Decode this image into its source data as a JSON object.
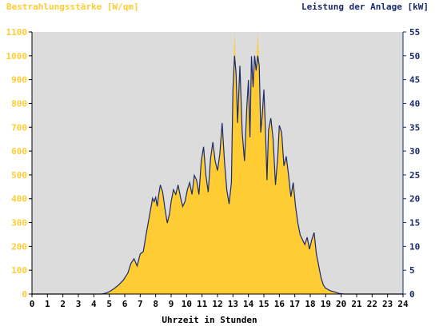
{
  "chart_data": {
    "type": "area",
    "title": "",
    "ylabel_left": "Bestrahlungsstärke [W/qm]",
    "ylabel_right": "Leistung der Anlage [kW]",
    "xlabel": "Uhrzeit in Stunden",
    "xlim": [
      0,
      24
    ],
    "ylim_left": [
      0,
      1100
    ],
    "ylim_right": [
      0,
      55
    ],
    "x_ticks": [
      "0",
      "1",
      "2",
      "3",
      "4",
      "5",
      "6",
      "7",
      "8",
      "9",
      "10",
      "11",
      "12",
      "13",
      "14",
      "15",
      "16",
      "17",
      "18",
      "19",
      "20",
      "21",
      "22",
      "23",
      "24"
    ],
    "y_ticks_left": [
      "0",
      "100",
      "200",
      "300",
      "400",
      "500",
      "600",
      "700",
      "800",
      "900",
      "1000",
      "1100"
    ],
    "y_ticks_right": [
      "0",
      "5",
      "10",
      "15",
      "20",
      "25",
      "30",
      "35",
      "40",
      "45",
      "50",
      "55"
    ],
    "grid": false,
    "series": [
      {
        "name": "Bestrahlungsstärke",
        "axis": "left",
        "style": "filled",
        "x": [
          0,
          4.5,
          4.8,
          5.0,
          5.3,
          5.6,
          5.9,
          6.2,
          6.4,
          6.6,
          6.8,
          7.0,
          7.2,
          7.4,
          7.6,
          7.8,
          7.9,
          8.0,
          8.1,
          8.2,
          8.3,
          8.45,
          8.6,
          8.75,
          8.9,
          9.0,
          9.15,
          9.3,
          9.45,
          9.6,
          9.75,
          9.9,
          10.05,
          10.2,
          10.35,
          10.5,
          10.65,
          10.8,
          10.95,
          11.1,
          11.25,
          11.4,
          11.55,
          11.7,
          11.85,
          12.0,
          12.15,
          12.3,
          12.45,
          12.6,
          12.75,
          12.9,
          13.0,
          13.1,
          13.2,
          13.3,
          13.45,
          13.6,
          13.75,
          13.9,
          14.0,
          14.1,
          14.2,
          14.3,
          14.4,
          14.5,
          14.6,
          14.7,
          14.8,
          14.9,
          15.0,
          15.1,
          15.2,
          15.3,
          15.45,
          15.6,
          15.75,
          15.9,
          16.0,
          16.15,
          16.3,
          16.45,
          16.6,
          16.75,
          16.9,
          17.05,
          17.2,
          17.35,
          17.5,
          17.65,
          17.8,
          17.95,
          18.1,
          18.25,
          18.4,
          18.55,
          18.7,
          18.85,
          19.0,
          19.3,
          19.6,
          19.9,
          20.2,
          20.5,
          21.0,
          24
        ],
        "y": [
          0,
          0,
          5,
          12,
          25,
          40,
          60,
          90,
          130,
          150,
          120,
          170,
          180,
          260,
          330,
          405,
          390,
          410,
          370,
          420,
          460,
          430,
          360,
          300,
          340,
          390,
          440,
          420,
          460,
          410,
          370,
          390,
          440,
          470,
          420,
          500,
          480,
          420,
          560,
          620,
          500,
          430,
          570,
          640,
          560,
          520,
          590,
          720,
          560,
          440,
          380,
          470,
          860,
          1100,
          930,
          720,
          960,
          680,
          560,
          790,
          900,
          660,
          1000,
          870,
          1010,
          940,
          1100,
          960,
          680,
          760,
          860,
          700,
          480,
          690,
          740,
          650,
          460,
          580,
          710,
          680,
          540,
          580,
          500,
          410,
          470,
          370,
          300,
          250,
          230,
          210,
          240,
          190,
          230,
          260,
          170,
          120,
          70,
          40,
          25,
          15,
          8,
          3,
          0,
          0,
          0,
          0
        ]
      },
      {
        "name": "Leistung der Anlage",
        "axis": "right",
        "style": "line",
        "x": [
          0,
          4.5,
          4.8,
          5.0,
          5.3,
          5.6,
          5.9,
          6.2,
          6.4,
          6.6,
          6.8,
          7.0,
          7.2,
          7.4,
          7.6,
          7.8,
          7.9,
          8.0,
          8.1,
          8.2,
          8.3,
          8.45,
          8.6,
          8.75,
          8.9,
          9.0,
          9.15,
          9.3,
          9.45,
          9.6,
          9.75,
          9.9,
          10.05,
          10.2,
          10.35,
          10.5,
          10.65,
          10.8,
          10.95,
          11.1,
          11.25,
          11.4,
          11.55,
          11.7,
          11.85,
          12.0,
          12.15,
          12.3,
          12.45,
          12.6,
          12.75,
          12.9,
          13.0,
          13.1,
          13.2,
          13.3,
          13.45,
          13.6,
          13.75,
          13.9,
          14.0,
          14.1,
          14.2,
          14.3,
          14.4,
          14.5,
          14.6,
          14.7,
          14.8,
          14.9,
          15.0,
          15.1,
          15.2,
          15.3,
          15.45,
          15.6,
          15.75,
          15.9,
          16.0,
          16.15,
          16.3,
          16.45,
          16.6,
          16.75,
          16.9,
          17.05,
          17.2,
          17.35,
          17.5,
          17.65,
          17.8,
          17.95,
          18.1,
          18.25,
          18.4,
          18.55,
          18.7,
          18.85,
          19.0,
          19.3,
          19.6,
          19.9,
          20.2,
          20.5,
          21.0,
          24
        ],
        "y": [
          0,
          0,
          0.2,
          0.5,
          1.1,
          1.9,
          2.9,
          4.4,
          6.4,
          7.4,
          5.9,
          8.4,
          8.9,
          12.9,
          16.4,
          20.1,
          19.4,
          20.3,
          18.4,
          20.9,
          22.9,
          21.4,
          17.9,
          14.9,
          16.9,
          19.4,
          21.9,
          20.9,
          22.9,
          20.4,
          18.4,
          19.4,
          21.9,
          23.4,
          20.9,
          24.9,
          23.9,
          20.9,
          27.9,
          30.9,
          24.9,
          21.4,
          28.4,
          31.9,
          27.9,
          25.9,
          29.4,
          35.9,
          27.9,
          21.9,
          18.9,
          23.4,
          42.9,
          50.0,
          46.4,
          35.9,
          47.9,
          33.9,
          27.9,
          39.4,
          44.9,
          32.9,
          49.9,
          43.4,
          50.0,
          46.9,
          50.0,
          47.9,
          33.9,
          37.9,
          42.9,
          34.9,
          23.9,
          34.4,
          36.9,
          32.4,
          22.9,
          28.9,
          35.4,
          33.9,
          26.9,
          28.9,
          24.9,
          20.4,
          23.4,
          18.4,
          14.9,
          12.4,
          11.4,
          10.4,
          11.9,
          9.4,
          11.4,
          12.9,
          8.4,
          5.9,
          3.4,
          1.9,
          1.2,
          0.7,
          0.4,
          0.1,
          0,
          0,
          0,
          0
        ]
      }
    ],
    "colors": {
      "fill": "#ffcc33",
      "line": "#1a2a6c",
      "plot_background": "#dcdcdc",
      "left_axis_text": "#ffcc33",
      "right_axis_text": "#1a2a6c",
      "x_axis_text": "#000000"
    }
  }
}
